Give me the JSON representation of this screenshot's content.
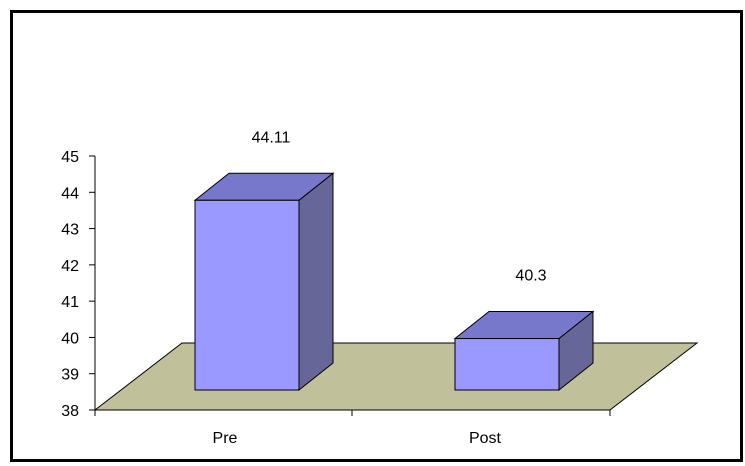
{
  "chart_data": {
    "type": "bar",
    "categories": [
      "Pre",
      "Post"
    ],
    "values": [
      44.11,
      40.3
    ],
    "data_labels": [
      "44.11",
      "40.3"
    ],
    "ylim": [
      38,
      45
    ],
    "y_ticks": [
      "38",
      "39",
      "40",
      "41",
      "42",
      "43",
      "44",
      "45"
    ],
    "grid": false,
    "legend": "none",
    "style": "3d-column",
    "colors": {
      "bar_front": "#9999ff",
      "bar_side": "#666699",
      "bar_top": "#7777cc",
      "floor": "#c0c09a",
      "frame": "#000000"
    }
  }
}
